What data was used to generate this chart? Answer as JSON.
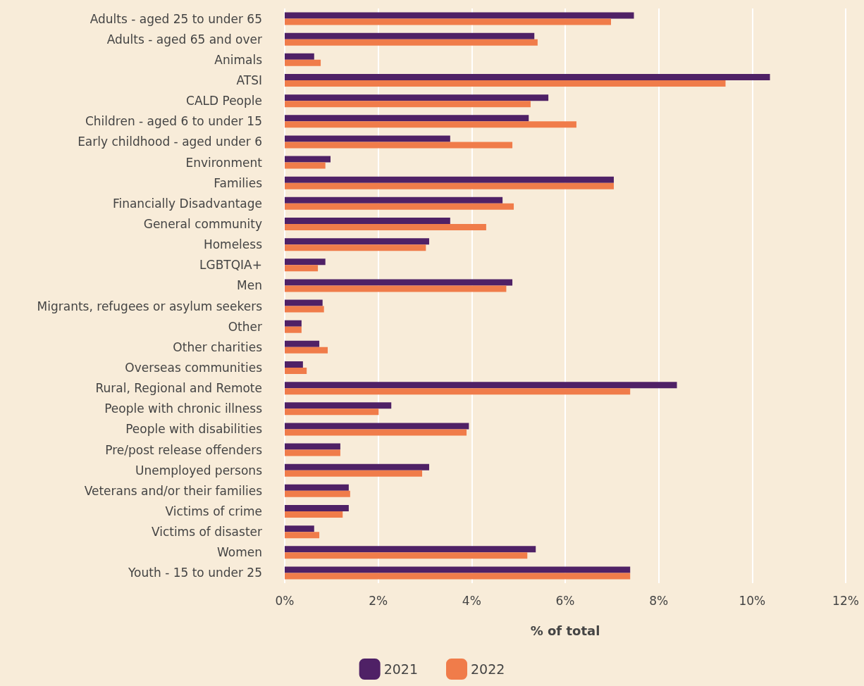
{
  "chart_data": {
    "type": "bar",
    "orientation": "horizontal",
    "xlabel": "% of total",
    "categories": [
      "Adults - aged 25 to under 65",
      "Adults - aged 65 and over",
      "Animals",
      "ATSI",
      "CALD People",
      "Children - aged 6 to under 15",
      "Early childhood - aged under 6",
      "Environment",
      "Families",
      "Financially Disadvantage",
      "General community",
      "Homeless",
      "LGBTQIA+",
      "Men",
      "Migrants, refugees or asylum seekers",
      "Other",
      "Other charities",
      "Overseas communities",
      "Rural, Regional and Remote",
      "People with chronic illness",
      "People with disabilities",
      "Pre/post release offenders",
      "Unemployed persons",
      "Veterans and/or their families",
      "Victims of crime",
      "Victims of disaster",
      "Women",
      "Youth - 15 to under 25"
    ],
    "series": [
      {
        "name": "2021",
        "color": "#4f2166",
        "values": [
          7.47,
          5.34,
          0.63,
          10.38,
          5.64,
          5.22,
          3.54,
          0.98,
          7.04,
          4.66,
          3.54,
          3.09,
          0.87,
          4.87,
          0.81,
          0.36,
          0.74,
          0.39,
          8.39,
          2.28,
          3.94,
          1.19,
          3.09,
          1.37,
          1.37,
          0.63,
          5.37,
          7.39
        ]
      },
      {
        "name": "2022",
        "color": "#f07c4a",
        "values": [
          6.98,
          5.41,
          0.77,
          9.43,
          5.26,
          6.24,
          4.87,
          0.87,
          7.04,
          4.9,
          4.31,
          3.02,
          0.71,
          4.74,
          0.84,
          0.36,
          0.92,
          0.47,
          7.39,
          2.01,
          3.89,
          1.19,
          2.94,
          1.4,
          1.24,
          0.74,
          5.19,
          7.39
        ]
      }
    ],
    "xlim": [
      0,
      12
    ],
    "xticks": [
      {
        "value": 0,
        "label": "0%"
      },
      {
        "value": 2,
        "label": "2%"
      },
      {
        "value": 4,
        "label": "4%"
      },
      {
        "value": 6,
        "label": "6%"
      },
      {
        "value": 8,
        "label": "8%"
      },
      {
        "value": 10,
        "label": "10%"
      },
      {
        "value": 12,
        "label": "12%"
      }
    ],
    "grid": "x",
    "legend": "bottom"
  }
}
